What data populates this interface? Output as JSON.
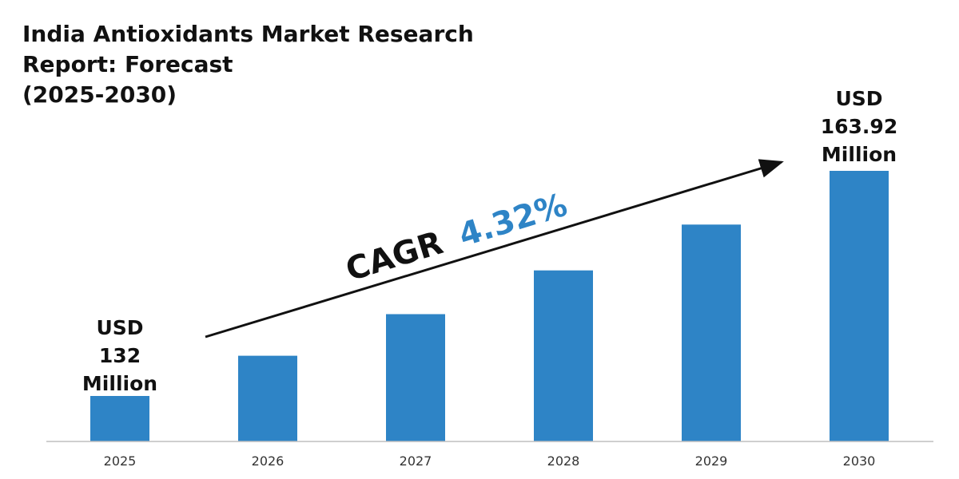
{
  "title": {
    "line1": "India Antioxidants Market Research",
    "line2": "Report: Forecast",
    "line3": "(2025-2030)"
  },
  "cagr": {
    "label": "CAGR",
    "value": "4.32%"
  },
  "first_label": {
    "line1": "USD",
    "line2": "132",
    "line3": "Million"
  },
  "last_label": {
    "line1": "USD",
    "line2": "163.92",
    "line3": "Million"
  },
  "colors": {
    "bar": "#2e84c6",
    "cagr_value": "#2e84c6",
    "text": "#111111",
    "axis": "#bfbfbf"
  },
  "chart_data": {
    "type": "bar",
    "categories": [
      "2025",
      "2026",
      "2027",
      "2028",
      "2029",
      "2030"
    ],
    "values": [
      132,
      137.7,
      143.6,
      149.8,
      156.3,
      163.92
    ],
    "unit": "USD Million",
    "ylim": [
      125,
      170
    ],
    "grid": false,
    "legend": "none"
  }
}
